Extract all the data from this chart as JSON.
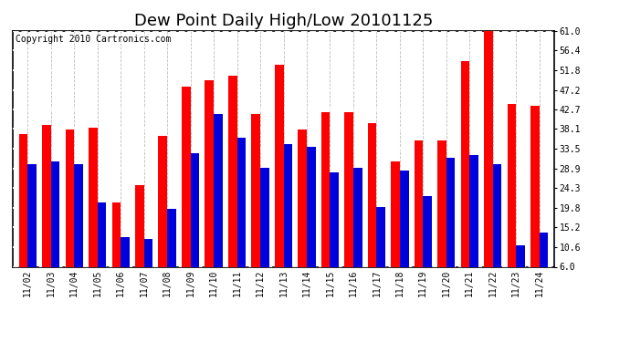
{
  "title": "Dew Point Daily High/Low 20101125",
  "copyright": "Copyright 2010 Cartronics.com",
  "dates": [
    "11/02",
    "11/03",
    "11/04",
    "11/05",
    "11/06",
    "11/07",
    "11/08",
    "11/09",
    "11/10",
    "11/11",
    "11/12",
    "11/13",
    "11/14",
    "11/15",
    "11/16",
    "11/17",
    "11/18",
    "11/19",
    "11/20",
    "11/21",
    "11/22",
    "11/23",
    "11/24"
  ],
  "highs": [
    37.0,
    39.0,
    38.0,
    38.5,
    21.0,
    25.0,
    36.5,
    48.0,
    49.5,
    50.5,
    41.5,
    53.0,
    38.0,
    42.0,
    42.0,
    39.5,
    30.5,
    35.5,
    35.5,
    54.0,
    61.0,
    44.0,
    43.5
  ],
  "lows": [
    30.0,
    30.5,
    30.0,
    21.0,
    13.0,
    12.5,
    19.5,
    32.5,
    41.5,
    36.0,
    29.0,
    34.5,
    34.0,
    28.0,
    29.0,
    20.0,
    28.5,
    22.5,
    31.5,
    32.0,
    30.0,
    11.0,
    14.0
  ],
  "bar_color_high": "#ff0000",
  "bar_color_low": "#0000dd",
  "background_color": "#ffffff",
  "plot_bg_color": "#ffffff",
  "yticks": [
    6.0,
    10.6,
    15.2,
    19.8,
    24.3,
    28.9,
    33.5,
    38.1,
    42.7,
    47.2,
    51.8,
    56.4,
    61.0
  ],
  "ylim": [
    6.0,
    61.0
  ],
  "title_fontsize": 13,
  "copyright_fontsize": 7,
  "tick_fontsize": 7
}
